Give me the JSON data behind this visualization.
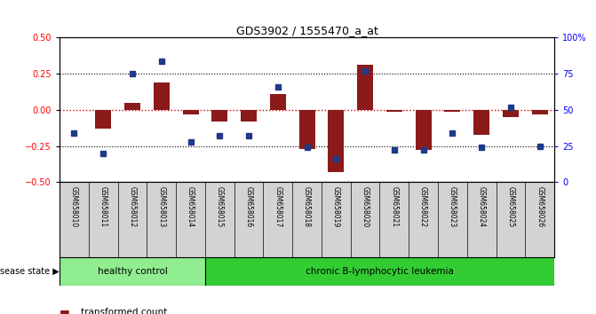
{
  "title": "GDS3902 / 1555470_a_at",
  "samples": [
    "GSM658010",
    "GSM658011",
    "GSM658012",
    "GSM658013",
    "GSM658014",
    "GSM658015",
    "GSM658016",
    "GSM658017",
    "GSM658018",
    "GSM658019",
    "GSM658020",
    "GSM658021",
    "GSM658022",
    "GSM658023",
    "GSM658024",
    "GSM658025",
    "GSM658026"
  ],
  "red_values": [
    0.0,
    -0.13,
    0.05,
    0.19,
    -0.03,
    -0.08,
    -0.08,
    0.11,
    -0.27,
    -0.43,
    0.31,
    -0.01,
    -0.28,
    -0.01,
    -0.17,
    -0.05,
    -0.03
  ],
  "blue_values": [
    -0.16,
    -0.3,
    0.25,
    0.34,
    -0.22,
    -0.18,
    -0.18,
    0.16,
    -0.26,
    -0.34,
    0.27,
    -0.28,
    -0.28,
    -0.16,
    -0.26,
    0.02,
    -0.25
  ],
  "n_healthy": 5,
  "n_leukemia": 12,
  "ylim": [
    -0.5,
    0.5
  ],
  "yticks_left": [
    -0.5,
    -0.25,
    0,
    0.25,
    0.5
  ],
  "yticks_right_pos": [
    -0.5,
    -0.25,
    0.0,
    0.25,
    0.5
  ],
  "yticks_right_labels": [
    "0",
    "25",
    "50",
    "75",
    "100%"
  ],
  "bar_color": "#8B1A1A",
  "blue_color": "#1E3A8A",
  "healthy_color": "#90EE90",
  "leukemia_color": "#32CD32",
  "label_bg_color": "#D3D3D3",
  "zero_line_color": "#CC0000",
  "bar_width": 0.55
}
